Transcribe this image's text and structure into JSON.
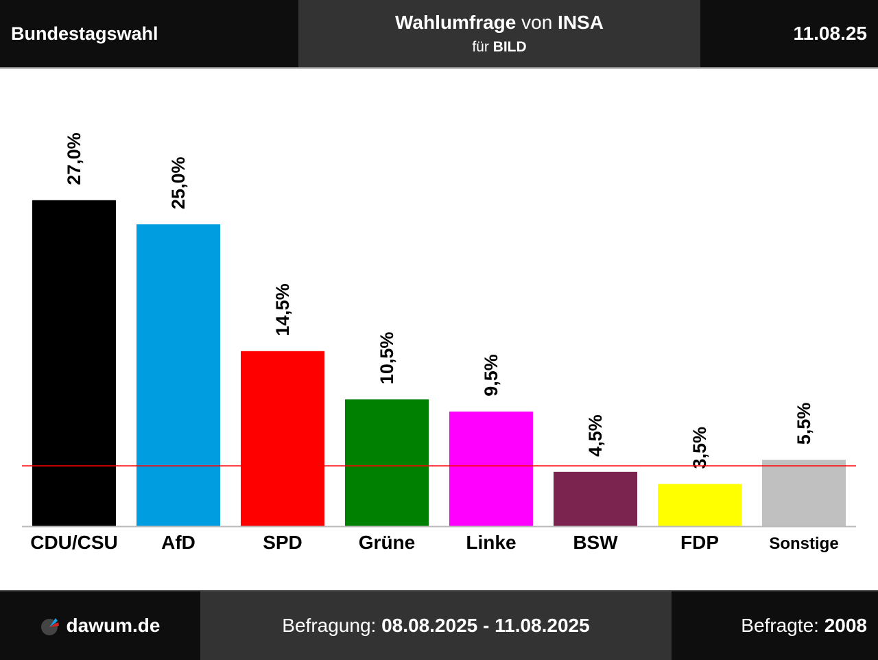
{
  "header": {
    "left": "Bundestagswahl",
    "title_bold1": "Wahlumfrage",
    "title_mid": " von ",
    "title_bold2": "INSA",
    "sub_pre": "für ",
    "sub_bold": "BILD",
    "date": "11.08.25"
  },
  "footer": {
    "logo_text": "dawum.de",
    "period_label": "Befragung: ",
    "period": "08.08.2025 - 11.08.2025",
    "sample_label": "Befragte: ",
    "sample": "2008"
  },
  "chart_data": {
    "type": "bar",
    "categories": [
      "CDU/CSU",
      "AfD",
      "SPD",
      "Grüne",
      "Linke",
      "BSW",
      "FDP",
      "Sonstige"
    ],
    "values": [
      27.0,
      25.0,
      14.5,
      10.5,
      9.5,
      4.5,
      3.5,
      5.5
    ],
    "value_labels": [
      "27,0%",
      "25,0%",
      "14,5%",
      "10,5%",
      "9,5%",
      "4,5%",
      "3,5%",
      "5,5%"
    ],
    "colors": [
      "#000000",
      "#009ee0",
      "#ff0000",
      "#008000",
      "#ff00ff",
      "#7b2450",
      "#ffff00",
      "#c0c0c0"
    ],
    "threshold": 5,
    "threshold_color": "#ff0000",
    "ylim": [
      0,
      27
    ]
  }
}
